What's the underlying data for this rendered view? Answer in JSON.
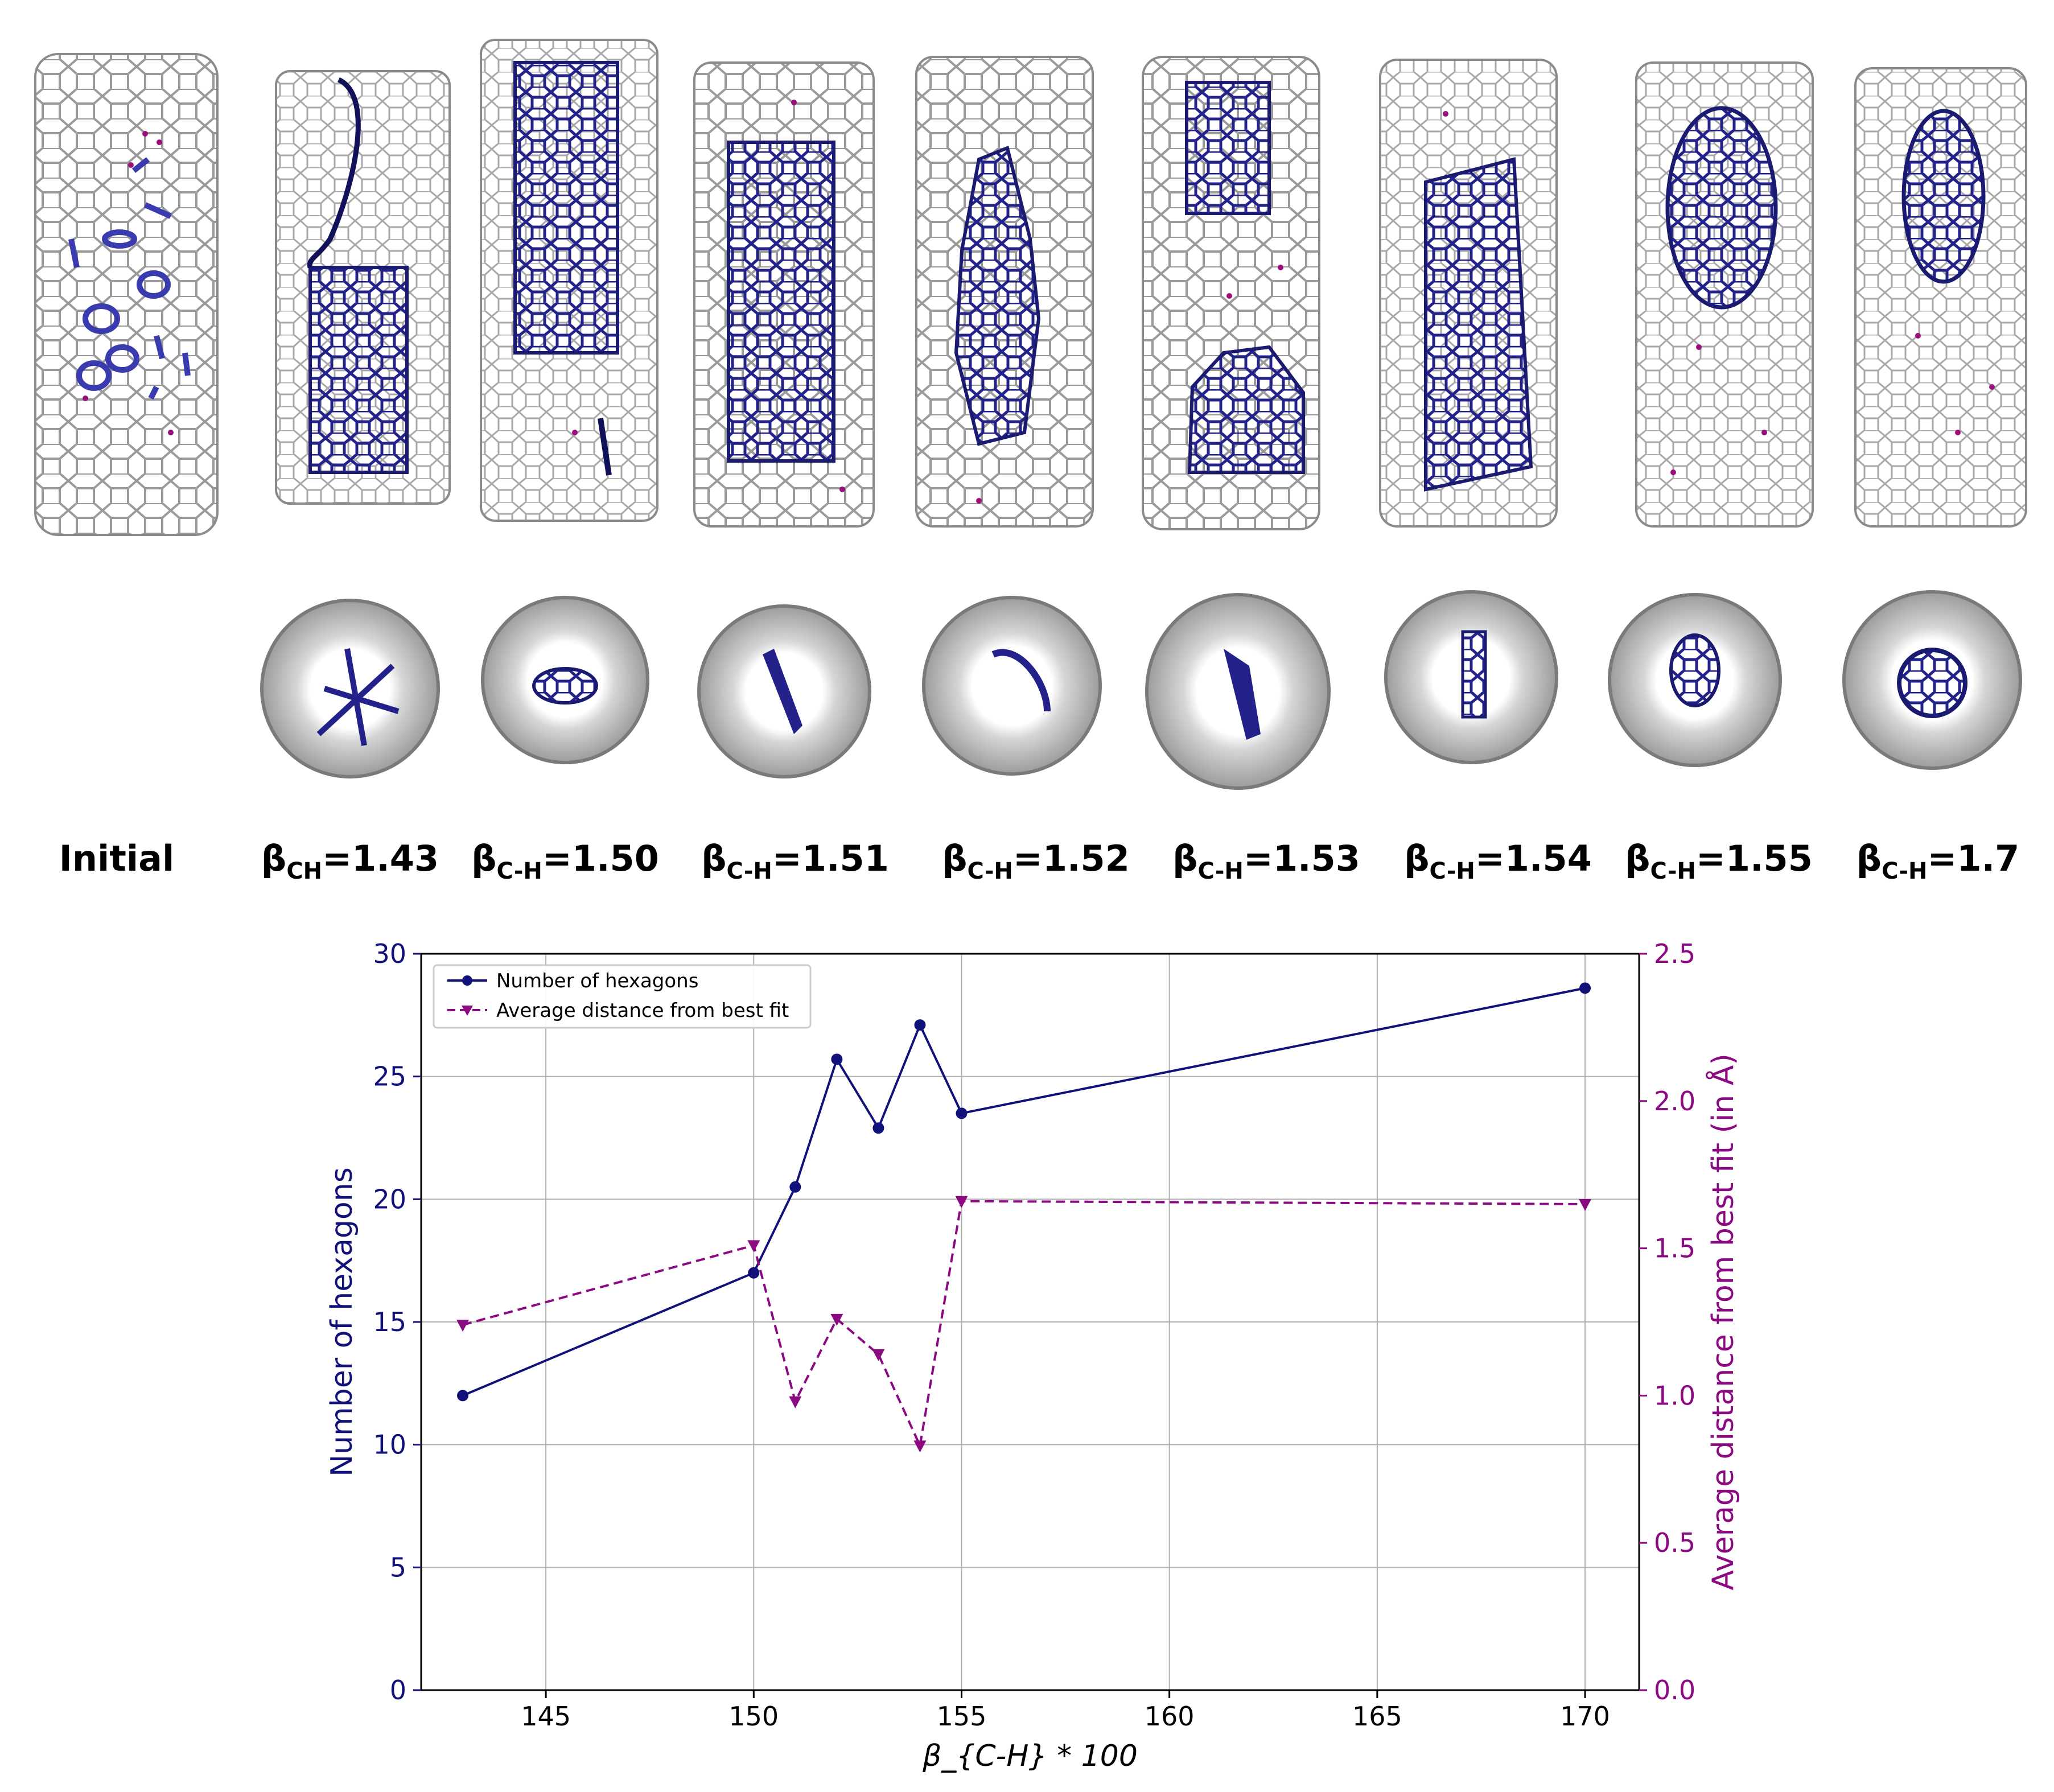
{
  "panel_labels": [
    {
      "main": "Initial",
      "sub": "",
      "val": ""
    },
    {
      "main": "β",
      "sub": "CH",
      "val": "=1.43"
    },
    {
      "main": "β",
      "sub": "C-H",
      "val": "=1.50"
    },
    {
      "main": "β",
      "sub": "C-H",
      "val": "=1.51"
    },
    {
      "main": "β",
      "sub": "C-H",
      "val": "=1.52"
    },
    {
      "main": "β",
      "sub": "C-H",
      "val": "=1.53"
    },
    {
      "main": "β",
      "sub": "C-H",
      "val": "=1.54"
    },
    {
      "main": "β",
      "sub": "C-H",
      "val": "=1.55"
    },
    {
      "main": "β",
      "sub": "C-H",
      "val": "=1.7"
    }
  ],
  "colors": {
    "hexagons": "#11117a",
    "distance": "#8b0a82",
    "tube": "#9a9a9a",
    "molecule": "#22228a",
    "hydrogen": "#9b0e7c"
  },
  "chart_data": {
    "type": "line",
    "xlabel": "β_{C-H} * 100",
    "ylabel_left": "Number of hexagons",
    "ylabel_right": "Average distance from best fit (in Å)",
    "x": [
      143,
      150,
      151,
      152,
      153,
      154,
      155,
      170
    ],
    "xlim": [
      142,
      171.3
    ],
    "xticks": [
      145,
      150,
      155,
      160,
      165,
      170
    ],
    "ylim_left": [
      0,
      30
    ],
    "yticks_left": [
      0,
      5,
      10,
      15,
      20,
      25,
      30
    ],
    "ylim_right": [
      0,
      2.5
    ],
    "yticks_right": [
      "0.0",
      "0.5",
      "1.0",
      "1.5",
      "2.0",
      "2.5"
    ],
    "grid": true,
    "legend_position": "top-left",
    "series": [
      {
        "name": "Number of hexagons",
        "axis": "left",
        "style": "solid",
        "marker": "circle",
        "values": [
          12,
          17,
          20.5,
          25.7,
          22.9,
          27.1,
          23.5,
          28.6
        ]
      },
      {
        "name": "Average distance from best fit",
        "axis": "right",
        "style": "dashed",
        "marker": "triangle-down",
        "values": [
          1.24,
          1.51,
          0.98,
          1.26,
          1.14,
          0.83,
          1.66,
          1.65
        ]
      }
    ]
  }
}
